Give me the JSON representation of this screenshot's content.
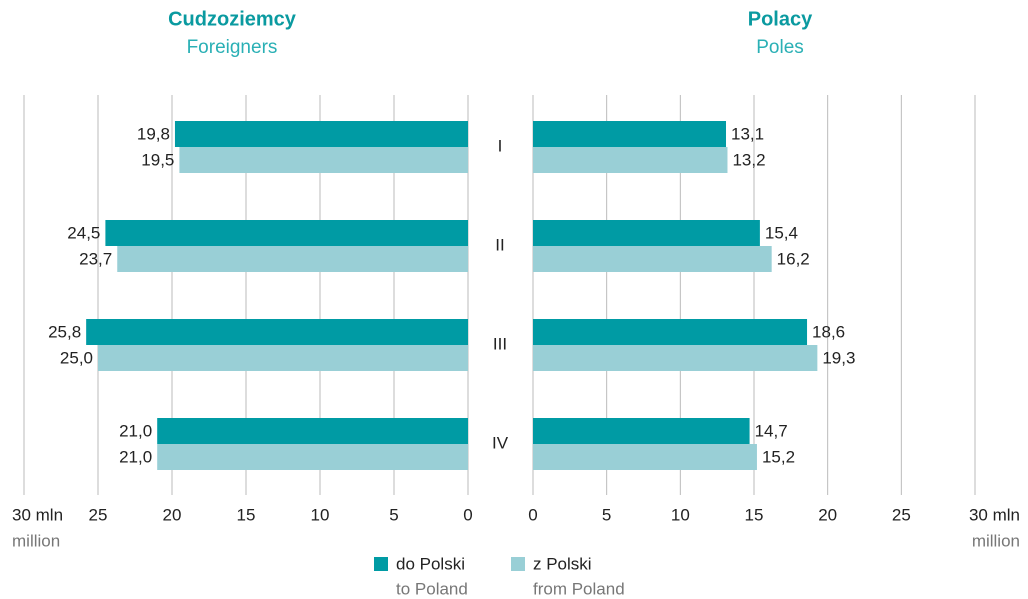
{
  "chart_data": [
    {
      "type": "bar",
      "orientation": "horizontal",
      "title": "Cudzoziemcy",
      "subtitle": "Foreigners",
      "categories": [
        "I",
        "II",
        "III",
        "IV"
      ],
      "series": [
        {
          "name": "do Polski",
          "name_en": "to Poland",
          "color": "#009ba4",
          "values": [
            19.8,
            24.5,
            25.8,
            21.0
          ],
          "value_labels": [
            "19,8",
            "24,5",
            "25,8",
            "21,0"
          ]
        },
        {
          "name": "z Polski",
          "name_en": "from Poland",
          "color": "#99cfd6",
          "values": [
            19.5,
            23.7,
            25.0,
            21.0
          ],
          "value_labels": [
            "19,5",
            "23,7",
            "25,0",
            "21,0"
          ]
        }
      ],
      "xlim": [
        30,
        0
      ],
      "xticks": [
        {
          "value": 30,
          "label": "30 mln"
        },
        25,
        20,
        15,
        10,
        5,
        0
      ],
      "xlabel": "million",
      "grid": true
    },
    {
      "type": "bar",
      "orientation": "horizontal",
      "title": "Polacy",
      "subtitle": "Poles",
      "series": [
        {
          "color": "#009ba4",
          "values": [
            13.1,
            15.4,
            18.6,
            14.7
          ],
          "value_labels": [
            "13,1",
            "15,4",
            "18,6",
            "14,7"
          ]
        },
        {
          "color": "#99cfd6",
          "values": [
            13.2,
            16.2,
            19.3,
            15.2
          ],
          "value_labels": [
            "13,2",
            "16,2",
            "19,3",
            "15,2"
          ]
        }
      ],
      "xlim": [
        0,
        30
      ],
      "xticks": [
        0,
        5,
        10,
        15,
        20,
        25,
        {
          "value": 30,
          "label": "30 mln"
        }
      ],
      "xlabel": "million",
      "grid": true
    }
  ]
}
